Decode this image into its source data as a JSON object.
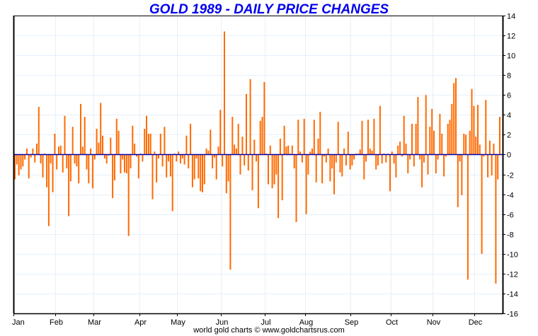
{
  "chart_data": {
    "type": "bar",
    "title": "GOLD 1989 - DAILY PRICE CHANGES",
    "xlabel": "",
    "ylabel": "",
    "ylim": [
      -16,
      14
    ],
    "yticks": [
      14,
      12,
      10,
      8,
      6,
      4,
      2,
      0,
      -2,
      -4,
      -6,
      -8,
      -10,
      -12,
      -14,
      -16
    ],
    "grid": true,
    "legend": "none",
    "x_month_labels": [
      "Jan",
      "Feb",
      "Mar",
      "Apr",
      "May",
      "Jun",
      "Jul",
      "Aug",
      "Sep",
      "Oct",
      "Nov",
      "Dec"
    ],
    "month_start_index": [
      0,
      21,
      40,
      63,
      82,
      104,
      126,
      146,
      169,
      189,
      210,
      231
    ],
    "bar_color": "#ff6a00",
    "zero_line_color": "#0000aa",
    "grid_color": "#e6f0fa",
    "values": [
      -2.5,
      -1.0,
      -2.1,
      -1.5,
      -1.2,
      -0.5,
      0.6,
      -2.4,
      -0.3,
      0.6,
      -0.8,
      1.1,
      4.8,
      -0.9,
      -2.3,
      0.1,
      -3.3,
      -7.2,
      -0.9,
      -3.8,
      2.1,
      -1.5,
      0.8,
      0.9,
      -1.8,
      3.9,
      -1.4,
      -6.2,
      -2.7,
      2.8,
      -0.9,
      -1.2,
      -2.9,
      5.1,
      0.8,
      3.8,
      -1.5,
      -2.9,
      0.6,
      -3.4,
      -0.5,
      2.6,
      1.2,
      5.2,
      1.9,
      -0.4,
      -0.9,
      -0.1,
      1.7,
      -4.4,
      -2.6,
      3.6,
      2.4,
      -1.9,
      -0.5,
      -1.8,
      -1.9,
      -8.2,
      -1.4,
      2.9,
      1.1,
      -0.2,
      -2.4,
      0.1,
      -0.7,
      2.6,
      3.9,
      2.1,
      2.1,
      -4.5,
      0.3,
      -2.8,
      -0.4,
      2.1,
      -1.2,
      2.8,
      -2.3,
      -0.7,
      -2.2,
      -5.7,
      0.1,
      -0.7,
      0.3,
      -0.9,
      -0.4,
      -1.0,
      1.9,
      -1.4,
      3.1,
      -3.3,
      -2.5,
      -0.4,
      -2.4,
      -3.7,
      -3.8,
      -3.0,
      0.6,
      0.4,
      2.5,
      -1.4,
      -0.3,
      -2.5,
      0.8,
      4.5,
      -1.2,
      12.4,
      -3.9,
      -2.7,
      -11.6,
      3.8,
      1.0,
      0.6,
      3.1,
      -2.0,
      1.8,
      -1.1,
      6.1,
      -1.6,
      7.6,
      -3.6,
      1.5,
      -0.7,
      -5.4,
      3.4,
      3.8,
      7.3,
      0.1,
      -3.0,
      0.9,
      -3.4,
      -3.0,
      -2.0,
      -6.4,
      1.6,
      -4.6,
      2.9,
      0.8,
      0.9,
      0.1,
      0.9,
      -1.4,
      -6.8,
      3.5,
      0.3,
      -0.8,
      3.6,
      -6.0,
      -2.0,
      0.3,
      0.6,
      3.5,
      -2.8,
      1.6,
      4.3,
      -2.9,
      -0.2,
      -0.8,
      0.6,
      -2.7,
      -1.4,
      -4.0,
      -0.8,
      3.3,
      -1.8,
      -2.2,
      0.6,
      -1.1,
      2.3,
      -1.5,
      -1.1,
      -0.5,
      0.1,
      0.1,
      0.5,
      3.4,
      -2.5,
      -0.7,
      3.5,
      0.6,
      0.4,
      3.6,
      -1.5,
      -1.1,
      4.9,
      -0.9,
      0.1,
      -0.8,
      0.1,
      -3.7,
      0.3,
      -0.9,
      -2.3,
      0.9,
      1.3,
      -0.2,
      3.9,
      1.1,
      -1.9,
      -0.5,
      3.1,
      -1.2,
      3.1,
      5.8,
      -0.5,
      -3.3,
      -0.8,
      6.0,
      -2.0,
      2.8,
      4.6,
      2.4,
      -1.9,
      -0.5,
      4.1,
      2.1,
      -2.2,
      -0.2,
      3.1,
      3.5,
      5.1,
      7.2,
      7.7,
      -5.3,
      -0.7,
      -4.1,
      2.1,
      2.0,
      -12.6,
      2.4,
      6.6,
      4.9,
      1.8,
      5.0,
      1.0,
      -10.0,
      -0.2,
      5.5,
      -2.3,
      1.4,
      -2.1,
      1.1,
      -13.0,
      -2.5,
      3.8
    ]
  },
  "footer": "world gold charts © www.goldchartsrus.com"
}
